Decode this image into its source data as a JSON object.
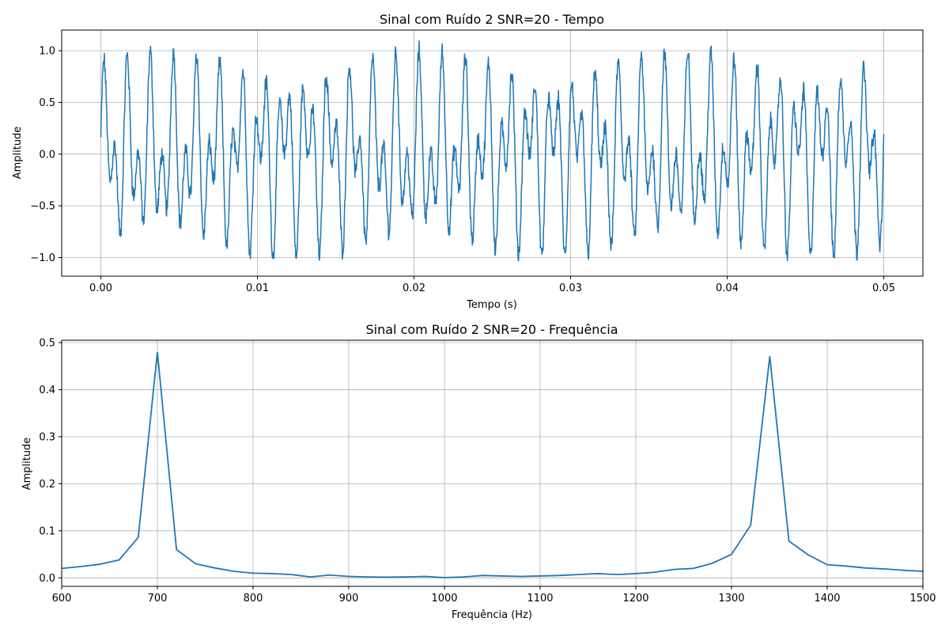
{
  "colors": {
    "line": "#1f77b4",
    "grid": "#b0b0b0"
  },
  "chart_data": [
    {
      "type": "line",
      "title": "Sinal com Ruído 2 SNR=20 - Tempo",
      "xlabel": "Tempo (s)",
      "ylabel": "Amplitude",
      "xlim": [
        -0.0025,
        0.0525
      ],
      "ylim": [
        -1.18,
        1.2
      ],
      "xticks": [
        0.0,
        0.01,
        0.02,
        0.03,
        0.04,
        0.05
      ],
      "xtick_labels": [
        "0.00",
        "0.01",
        "0.02",
        "0.03",
        "0.04",
        "0.05"
      ],
      "yticks": [
        -1.0,
        -0.5,
        0.0,
        0.5,
        1.0
      ],
      "ytick_labels": [
        "−1.0",
        "−0.5",
        "0.0",
        "0.5",
        "1.0"
      ],
      "grid": true,
      "signal": {
        "duration_s": 0.05,
        "components": [
          {
            "freq_hz": 700,
            "amplitude": 0.5
          },
          {
            "freq_hz": 1340,
            "amplitude": 0.5
          }
        ],
        "snr_db": 20
      }
    },
    {
      "type": "line",
      "title": "Sinal com Ruído 2 SNR=20 - Frequência",
      "xlabel": "Frequência (Hz)",
      "ylabel": "Amplitude",
      "xlim": [
        600,
        1500
      ],
      "ylim": [
        -0.018,
        0.505
      ],
      "xticks": [
        600,
        700,
        800,
        900,
        1000,
        1100,
        1200,
        1300,
        1400,
        1500
      ],
      "xtick_labels": [
        "600",
        "700",
        "800",
        "900",
        "1000",
        "1100",
        "1200",
        "1300",
        "1400",
        "1500"
      ],
      "yticks": [
        0.0,
        0.1,
        0.2,
        0.3,
        0.4,
        0.5
      ],
      "ytick_labels": [
        "0.0",
        "0.1",
        "0.2",
        "0.3",
        "0.4",
        "0.5"
      ],
      "grid": true,
      "x": [
        600,
        620,
        640,
        660,
        680,
        700,
        720,
        740,
        760,
        780,
        800,
        820,
        840,
        860,
        880,
        900,
        920,
        940,
        960,
        980,
        1000,
        1020,
        1040,
        1060,
        1080,
        1100,
        1120,
        1140,
        1160,
        1180,
        1200,
        1220,
        1240,
        1260,
        1280,
        1300,
        1320,
        1340,
        1360,
        1380,
        1400,
        1420,
        1440,
        1460,
        1480,
        1500
      ],
      "y": [
        0.02,
        0.024,
        0.029,
        0.038,
        0.086,
        0.48,
        0.06,
        0.03,
        0.021,
        0.014,
        0.01,
        0.009,
        0.007,
        0.002,
        0.006,
        0.003,
        0.002,
        0.0015,
        0.002,
        0.003,
        0.0005,
        0.002,
        0.005,
        0.004,
        0.003,
        0.004,
        0.005,
        0.007,
        0.009,
        0.007,
        0.009,
        0.012,
        0.018,
        0.02,
        0.031,
        0.05,
        0.112,
        0.471,
        0.078,
        0.049,
        0.028,
        0.025,
        0.021,
        0.019,
        0.016,
        0.014
      ]
    }
  ]
}
